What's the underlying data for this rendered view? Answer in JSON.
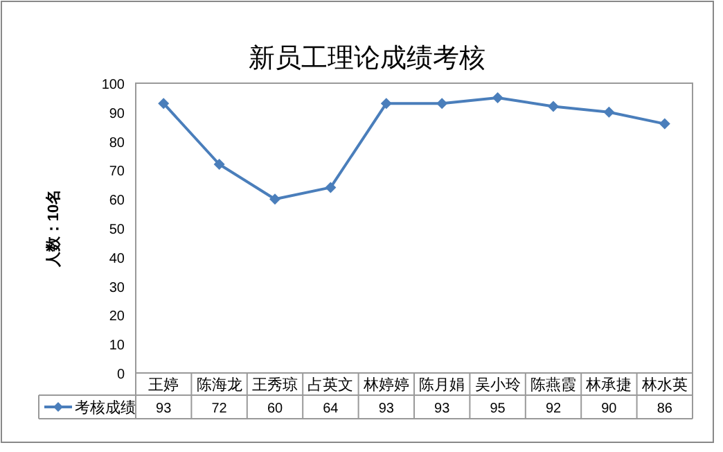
{
  "chart_data": {
    "type": "line",
    "title": "新员工理论成绩考核",
    "ylabel": "人数：10名",
    "categories": [
      "王婷",
      "陈海龙",
      "王秀琼",
      "占英文",
      "林婷婷",
      "陈月娟",
      "吴小玲",
      "陈燕霞",
      "林承捷",
      "林水英"
    ],
    "series": [
      {
        "name": "考核成绩",
        "color": "#4a7ebb",
        "values": [
          93,
          72,
          60,
          64,
          93,
          93,
          95,
          92,
          90,
          86
        ]
      }
    ],
    "ylim": [
      0,
      100
    ],
    "yticks": [
      0,
      10,
      20,
      30,
      40,
      50,
      60,
      70,
      80,
      90,
      100
    ],
    "data_labels": true,
    "legend": "bottom",
    "marker": "diamond",
    "line_style": "solid",
    "grid": false
  }
}
